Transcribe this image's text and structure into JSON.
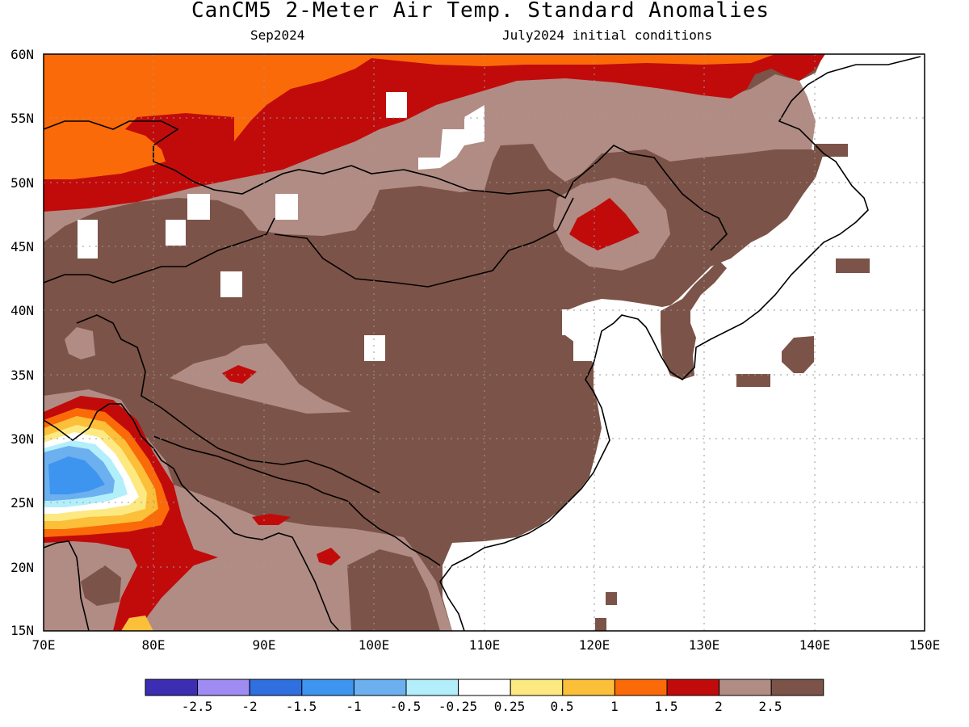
{
  "header": {
    "title": "CanCM5 2-Meter Air Temp. Standard Anomalies",
    "valid_month": "Sep2024",
    "init_conditions": "July2024 initial conditions"
  },
  "axes": {
    "lat_labels": [
      "60N",
      "55N",
      "50N",
      "45N",
      "40N",
      "35N",
      "30N",
      "25N",
      "20N",
      "15N"
    ],
    "lon_labels": [
      "70E",
      "80E",
      "90E",
      "100E",
      "110E",
      "120E",
      "130E",
      "140E",
      "150E"
    ],
    "lat_range": [
      15,
      60
    ],
    "lon_range": [
      70,
      150
    ],
    "grid": "dotted"
  },
  "colorbar": {
    "colors": [
      "#3d2db3",
      "#9f8cf2",
      "#2f6fe0",
      "#3e95f0",
      "#6cb0ef",
      "#b3eefb",
      "#ffffff",
      "#fde982",
      "#fbbf3a",
      "#fb6a08",
      "#c10b0b",
      "#b18c84",
      "#7c5348"
    ],
    "tick_labels": [
      "-2.5",
      "-2",
      "-1.5",
      "-1",
      "-0.5",
      "-0.25",
      "0.25",
      "0.5",
      "1",
      "1.5",
      "2",
      "2.5"
    ]
  }
}
